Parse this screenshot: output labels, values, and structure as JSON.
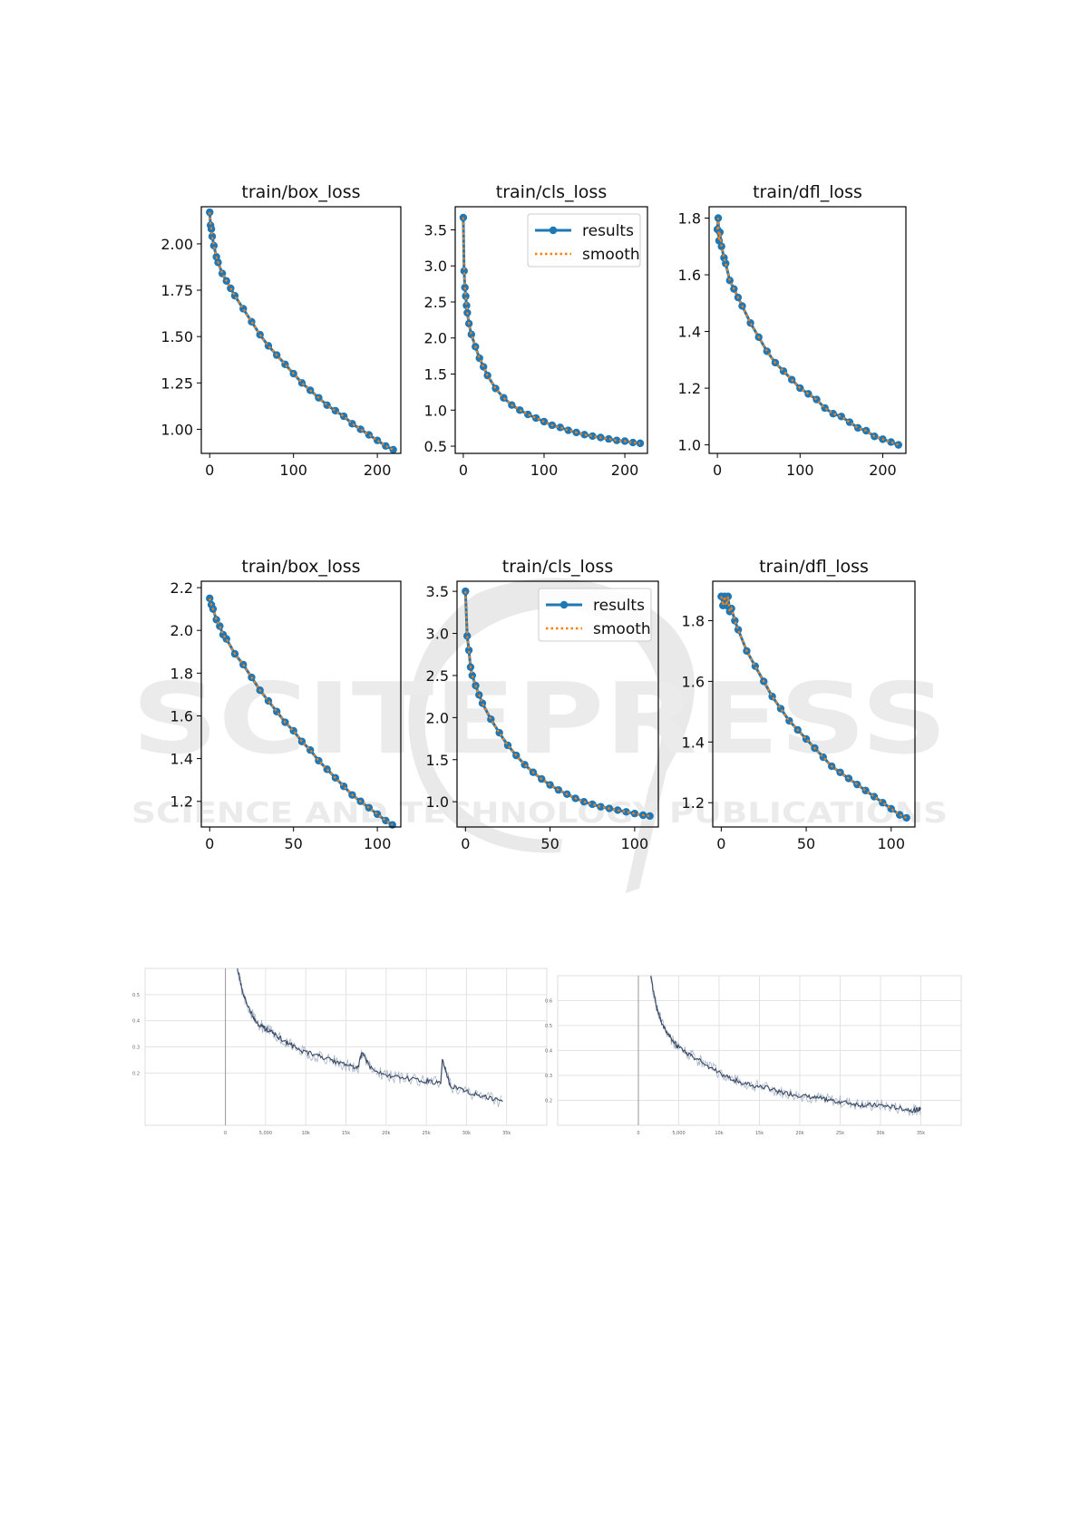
{
  "watermark": {
    "brand": "SCITEPRESS",
    "tagline": "SCIENCE AND TECHNOLOGY PUBLICATIONS"
  },
  "legend": {
    "results": "results",
    "smooth": "smooth"
  },
  "colors": {
    "results": "#1f77b4",
    "smooth": "#ff7f0e",
    "spike_line": "#3b4a63",
    "spike_band": "#a9b6c9",
    "grid": "#e3e3e3"
  },
  "chart_data": [
    {
      "type": "line",
      "title": "train/box_loss",
      "xlim": [
        -10,
        228
      ],
      "ylim": [
        0.87,
        2.2
      ],
      "xticks": [
        0,
        100,
        200
      ],
      "xtick_labels": [
        "0",
        "100",
        "200"
      ],
      "yticks": [
        1.0,
        1.25,
        1.5,
        1.75,
        2.0
      ],
      "ytick_labels": [
        "1.00",
        "1.25",
        "1.50",
        "1.75",
        "2.00"
      ],
      "legend": false,
      "series": [
        {
          "name": "results",
          "x": [
            0,
            1,
            2,
            3,
            5,
            8,
            10,
            15,
            20,
            25,
            30,
            40,
            50,
            60,
            70,
            80,
            90,
            100,
            110,
            120,
            130,
            140,
            150,
            160,
            170,
            180,
            190,
            200,
            210,
            219
          ],
          "y": [
            2.17,
            2.1,
            2.08,
            2.04,
            1.99,
            1.93,
            1.9,
            1.84,
            1.8,
            1.76,
            1.72,
            1.65,
            1.58,
            1.51,
            1.45,
            1.4,
            1.35,
            1.3,
            1.25,
            1.21,
            1.17,
            1.13,
            1.1,
            1.07,
            1.03,
            1.0,
            0.97,
            0.94,
            0.91,
            0.89
          ]
        }
      ]
    },
    {
      "type": "line",
      "title": "train/cls_loss",
      "xlim": [
        -10,
        228
      ],
      "ylim": [
        0.4,
        3.82
      ],
      "xticks": [
        0,
        100,
        200
      ],
      "xtick_labels": [
        "0",
        "100",
        "200"
      ],
      "yticks": [
        0.5,
        1.0,
        1.5,
        2.0,
        2.5,
        3.0,
        3.5
      ],
      "ytick_labels": [
        "0.5",
        "1.0",
        "1.5",
        "2.0",
        "2.5",
        "3.0",
        "3.5"
      ],
      "legend": true,
      "series": [
        {
          "name": "results",
          "x": [
            0,
            1,
            2,
            3,
            4,
            5,
            7,
            10,
            15,
            20,
            25,
            30,
            40,
            50,
            60,
            70,
            80,
            90,
            100,
            110,
            120,
            130,
            140,
            150,
            160,
            170,
            180,
            190,
            200,
            210,
            219
          ],
          "y": [
            3.67,
            2.93,
            2.7,
            2.58,
            2.45,
            2.35,
            2.2,
            2.05,
            1.88,
            1.72,
            1.6,
            1.48,
            1.3,
            1.17,
            1.07,
            1.0,
            0.94,
            0.89,
            0.84,
            0.79,
            0.76,
            0.72,
            0.69,
            0.66,
            0.64,
            0.62,
            0.6,
            0.58,
            0.57,
            0.55,
            0.54
          ]
        }
      ]
    },
    {
      "type": "line",
      "title": "train/dfl_loss",
      "xlim": [
        -10,
        228
      ],
      "ylim": [
        0.97,
        1.84
      ],
      "xticks": [
        0,
        100,
        200
      ],
      "xtick_labels": [
        "0",
        "100",
        "200"
      ],
      "yticks": [
        1.0,
        1.2,
        1.4,
        1.6,
        1.8
      ],
      "ytick_labels": [
        "1.0",
        "1.2",
        "1.4",
        "1.6",
        "1.8"
      ],
      "legend": false,
      "series": [
        {
          "name": "results",
          "x": [
            0,
            1,
            2,
            3,
            5,
            8,
            10,
            15,
            20,
            25,
            30,
            40,
            50,
            60,
            70,
            80,
            90,
            100,
            110,
            120,
            130,
            140,
            150,
            160,
            170,
            180,
            190,
            200,
            210,
            219
          ],
          "y": [
            1.76,
            1.8,
            1.72,
            1.75,
            1.7,
            1.66,
            1.64,
            1.58,
            1.55,
            1.52,
            1.49,
            1.43,
            1.38,
            1.33,
            1.29,
            1.26,
            1.23,
            1.2,
            1.18,
            1.16,
            1.13,
            1.11,
            1.1,
            1.08,
            1.06,
            1.05,
            1.03,
            1.02,
            1.01,
            1.0
          ]
        }
      ]
    },
    {
      "type": "line",
      "title": "train/box_loss",
      "xlim": [
        -5,
        114
      ],
      "ylim": [
        1.08,
        2.23
      ],
      "xticks": [
        0,
        50,
        100
      ],
      "xtick_labels": [
        "0",
        "50",
        "100"
      ],
      "yticks": [
        1.2,
        1.4,
        1.6,
        1.8,
        2.0,
        2.2
      ],
      "ytick_labels": [
        "1.2",
        "1.4",
        "1.6",
        "1.8",
        "2.0",
        "2.2"
      ],
      "legend": false,
      "series": [
        {
          "name": "results",
          "x": [
            0,
            1,
            2,
            4,
            6,
            8,
            10,
            15,
            20,
            25,
            30,
            35,
            40,
            45,
            50,
            55,
            60,
            65,
            70,
            75,
            80,
            85,
            90,
            95,
            100,
            105,
            109
          ],
          "y": [
            2.15,
            2.12,
            2.1,
            2.05,
            2.02,
            1.98,
            1.96,
            1.89,
            1.84,
            1.78,
            1.72,
            1.67,
            1.62,
            1.57,
            1.53,
            1.48,
            1.44,
            1.39,
            1.35,
            1.31,
            1.27,
            1.23,
            1.2,
            1.17,
            1.14,
            1.11,
            1.09
          ]
        }
      ]
    },
    {
      "type": "line",
      "title": "train/cls_loss",
      "xlim": [
        -5,
        114
      ],
      "ylim": [
        0.7,
        3.62
      ],
      "xticks": [
        0,
        50,
        100
      ],
      "xtick_labels": [
        "0",
        "50",
        "100"
      ],
      "yticks": [
        1.0,
        1.5,
        2.0,
        2.5,
        3.0,
        3.5
      ],
      "ytick_labels": [
        "1.0",
        "1.5",
        "2.0",
        "2.5",
        "3.0",
        "3.5"
      ],
      "legend": true,
      "series": [
        {
          "name": "results",
          "x": [
            0,
            1,
            2,
            3,
            4,
            6,
            8,
            10,
            15,
            20,
            25,
            30,
            35,
            40,
            45,
            50,
            55,
            60,
            65,
            70,
            75,
            80,
            85,
            90,
            95,
            100,
            105,
            109
          ],
          "y": [
            3.5,
            2.97,
            2.8,
            2.6,
            2.5,
            2.38,
            2.27,
            2.17,
            1.98,
            1.82,
            1.67,
            1.55,
            1.44,
            1.35,
            1.27,
            1.2,
            1.14,
            1.09,
            1.04,
            1.0,
            0.97,
            0.94,
            0.92,
            0.9,
            0.88,
            0.86,
            0.84,
            0.83
          ]
        }
      ]
    },
    {
      "type": "line",
      "title": "train/dfl_loss",
      "xlim": [
        -5,
        114
      ],
      "ylim": [
        1.12,
        1.93
      ],
      "xticks": [
        0,
        50,
        100
      ],
      "xtick_labels": [
        "0",
        "50",
        "100"
      ],
      "yticks": [
        1.2,
        1.4,
        1.6,
        1.8
      ],
      "ytick_labels": [
        "1.2",
        "1.4",
        "1.6",
        "1.8"
      ],
      "legend": false,
      "series": [
        {
          "name": "results",
          "x": [
            0,
            1,
            2,
            3,
            4,
            5,
            6,
            8,
            10,
            15,
            20,
            25,
            30,
            35,
            40,
            45,
            50,
            55,
            60,
            65,
            70,
            75,
            80,
            85,
            90,
            95,
            100,
            105,
            109
          ],
          "y": [
            1.88,
            1.85,
            1.88,
            1.85,
            1.88,
            1.83,
            1.84,
            1.8,
            1.77,
            1.7,
            1.65,
            1.6,
            1.55,
            1.51,
            1.47,
            1.44,
            1.41,
            1.38,
            1.35,
            1.32,
            1.3,
            1.28,
            1.26,
            1.24,
            1.22,
            1.2,
            1.18,
            1.16,
            1.15
          ]
        }
      ]
    },
    {
      "type": "line",
      "title": "",
      "xlim": [
        -10000,
        40000
      ],
      "ylim": [
        0.0,
        0.6
      ],
      "xticks": [
        0,
        5000,
        10000,
        15000,
        20000,
        25000,
        30000,
        35000
      ],
      "xtick_labels": [
        "0",
        "5,000",
        "10k",
        "15k",
        "20k",
        "25k",
        "30k",
        "35k"
      ],
      "yticks": [
        0.2,
        0.3,
        0.4,
        0.5
      ],
      "ytick_labels": [
        "0.2",
        "0.3",
        "0.4",
        "0.5"
      ],
      "legend": false,
      "series": [
        {
          "name": "",
          "x": [
            1500,
            2200,
            3000,
            4000,
            5000,
            6000,
            7500,
            9000,
            11000,
            13000,
            15000,
            16500,
            17000,
            18000,
            20000,
            22000,
            25000,
            26800,
            27000,
            28000,
            30000,
            32000,
            34500
          ],
          "y": [
            0.6,
            0.5,
            0.44,
            0.39,
            0.37,
            0.35,
            0.32,
            0.29,
            0.27,
            0.25,
            0.23,
            0.22,
            0.28,
            0.22,
            0.19,
            0.18,
            0.17,
            0.16,
            0.25,
            0.15,
            0.13,
            0.11,
            0.09
          ]
        }
      ]
    },
    {
      "type": "line",
      "title": "",
      "xlim": [
        -10000,
        40000
      ],
      "ylim": [
        0.1,
        0.7
      ],
      "xticks": [
        0,
        5000,
        10000,
        15000,
        20000,
        25000,
        30000,
        35000
      ],
      "xtick_labels": [
        "0",
        "5,000",
        "10k",
        "15k",
        "20k",
        "25k",
        "30k",
        "35k"
      ],
      "yticks": [
        0.2,
        0.3,
        0.4,
        0.5,
        0.6
      ],
      "ytick_labels": [
        "0.2",
        "0.3",
        "0.4",
        "0.5",
        "0.6"
      ],
      "legend": false,
      "series": [
        {
          "name": "",
          "x": [
            1500,
            2200,
            3000,
            4000,
            5000,
            6500,
            8000,
            10000,
            12000,
            14000,
            16000,
            18000,
            20000,
            22000,
            24000,
            26000,
            28000,
            30000,
            32000,
            34000,
            35000
          ],
          "y": [
            0.7,
            0.58,
            0.5,
            0.45,
            0.41,
            0.38,
            0.35,
            0.31,
            0.28,
            0.26,
            0.25,
            0.23,
            0.22,
            0.21,
            0.2,
            0.19,
            0.18,
            0.18,
            0.17,
            0.16,
            0.165
          ]
        }
      ]
    }
  ]
}
